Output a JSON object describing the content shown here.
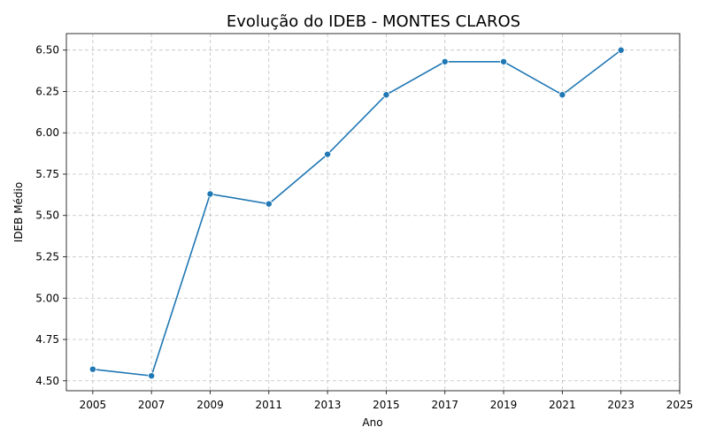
{
  "chart_data": {
    "type": "line",
    "title": "Evolução do IDEB - MONTES CLAROS",
    "xlabel": "Ano",
    "ylabel": "IDEB Médio",
    "x": [
      2005,
      2007,
      2009,
      2011,
      2013,
      2015,
      2017,
      2019,
      2021,
      2023
    ],
    "series": [
      {
        "values": [
          4.57,
          4.53,
          5.63,
          5.57,
          5.87,
          6.23,
          6.43,
          6.43,
          6.23,
          6.5
        ]
      }
    ],
    "xlim": [
      2004.1,
      2025
    ],
    "ylim": [
      4.44,
      6.6
    ],
    "x_ticks": [
      "2005",
      "2007",
      "2009",
      "2011",
      "2013",
      "2015",
      "2017",
      "2019",
      "2021",
      "2023",
      "2025"
    ],
    "y_ticks": [
      "4.50",
      "4.75",
      "5.00",
      "5.25",
      "5.50",
      "5.75",
      "6.00",
      "6.25",
      "6.50"
    ],
    "grid": true,
    "line_color": "#1f77b4",
    "marker": "circle"
  }
}
